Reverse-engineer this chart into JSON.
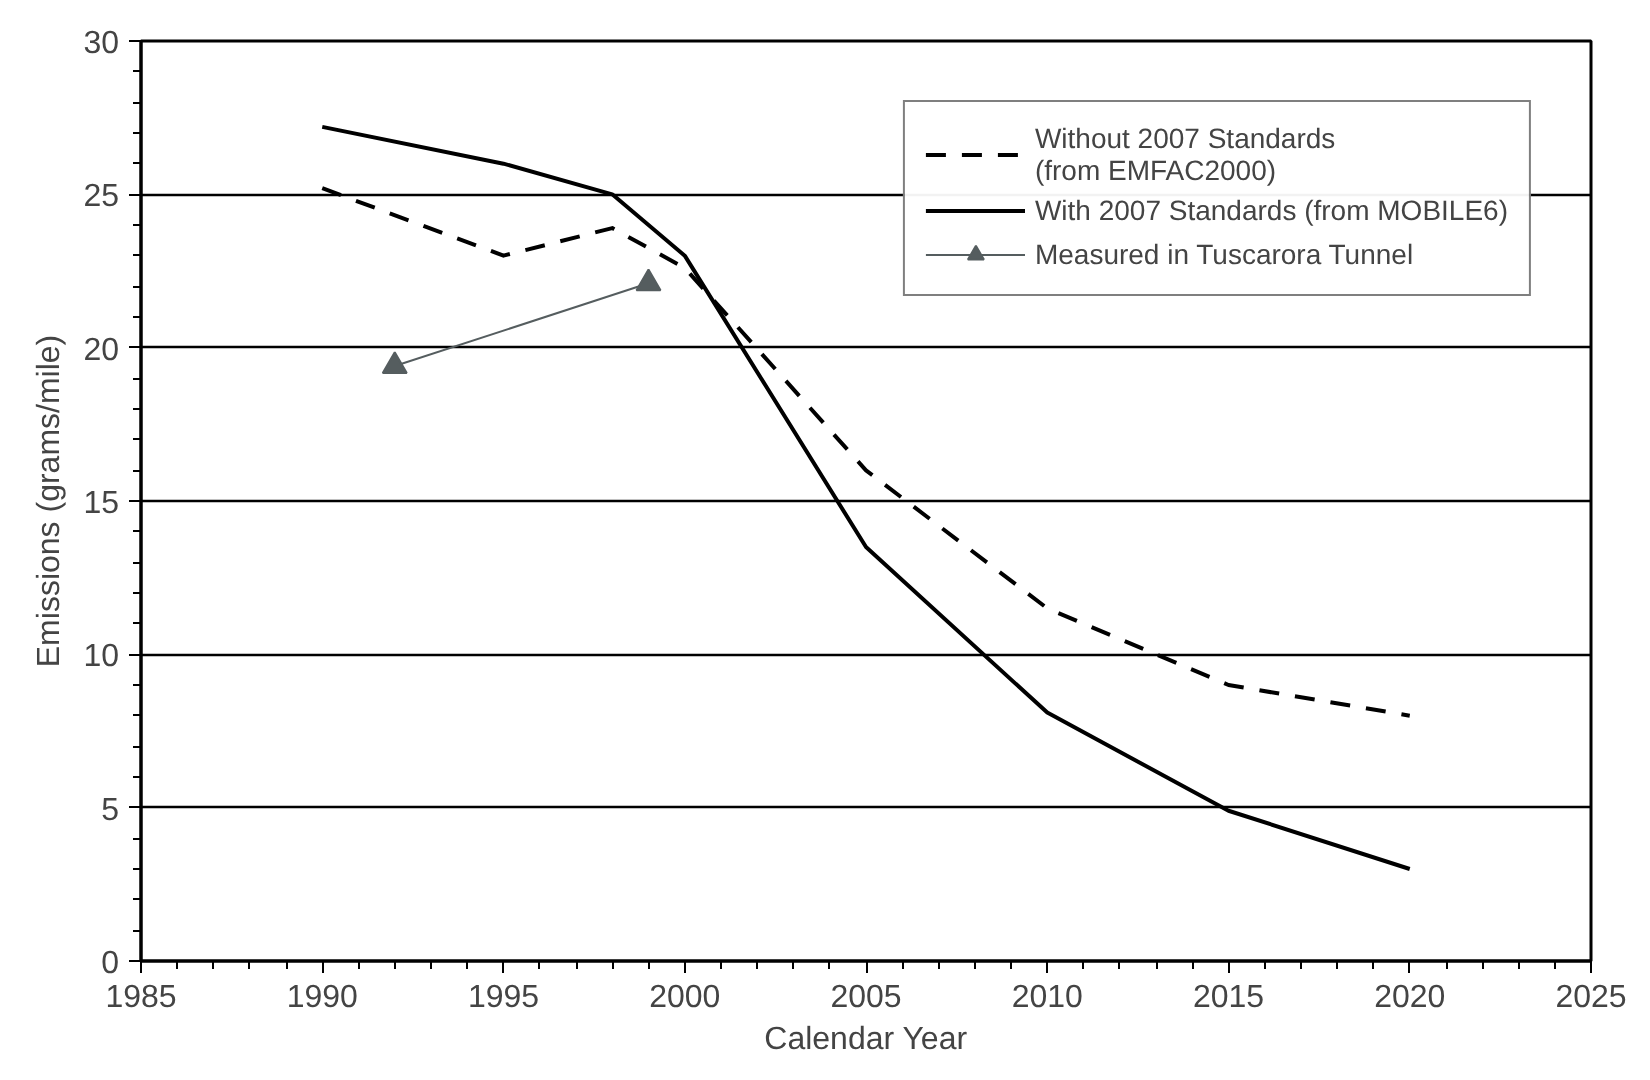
{
  "chart_data": {
    "type": "line",
    "xlabel": "Calendar Year",
    "ylabel": "Emissions (grams/mile)",
    "xlim": [
      1985,
      2025
    ],
    "xticks": [
      1985,
      1990,
      1995,
      2000,
      2005,
      2010,
      2015,
      2020,
      2025
    ],
    "ylim": [
      0,
      30
    ],
    "yticks": [
      0,
      5,
      10,
      15,
      20,
      25,
      30
    ],
    "grid": "y",
    "legend": "top right",
    "series": [
      {
        "name": "Without 2007 Standards\n(from EMFAC2000)",
        "color": "#000000",
        "line_style": "dashed",
        "marker": "none",
        "x": [
          1990,
          1995,
          1998,
          2000,
          2005,
          2010,
          2015,
          2020
        ],
        "values": [
          25.2,
          23.0,
          23.9,
          22.6,
          16.0,
          11.5,
          9.0,
          8.0
        ]
      },
      {
        "name": "With 2007 Standards (from MOBILE6)",
        "color": "#000000",
        "line_style": "solid",
        "marker": "none",
        "x": [
          1990,
          1995,
          1998,
          2000,
          2005,
          2010,
          2015,
          2020
        ],
        "values": [
          27.2,
          26.0,
          25.0,
          23.0,
          13.5,
          8.1,
          4.9,
          3.0
        ]
      },
      {
        "name": "Measured in Tuscarora Tunnel",
        "color": "#555d5f",
        "line_style": "solid",
        "marker": "triangle",
        "x": [
          1992,
          1999
        ],
        "values": [
          19.4,
          22.1
        ]
      }
    ]
  }
}
